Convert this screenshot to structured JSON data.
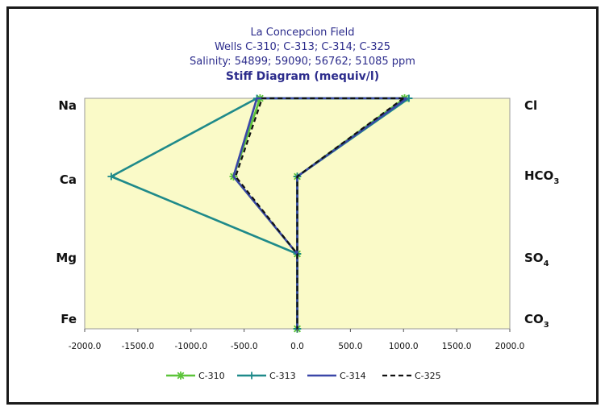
{
  "chart_data": {
    "type": "line",
    "title_lines": [
      "La Concepcion Field",
      "Wells C-310; C-313; C-314; C-325",
      "Salinity: 54899; 59090; 56762; 51085 ppm"
    ],
    "title_bold": "Stiff Diagram (mequiv/l)",
    "xlim": [
      -2000,
      2000
    ],
    "x_ticks": [
      "-2000.0",
      "-1500.0",
      "-1000.0",
      "-500.0",
      "0.0",
      "500.0",
      "1000.0",
      "1500.0",
      "2000.0"
    ],
    "left_labels": [
      {
        "base": "Na",
        "sub": ""
      },
      {
        "base": "Ca",
        "sub": ""
      },
      {
        "base": "Mg",
        "sub": ""
      },
      {
        "base": "Fe",
        "sub": ""
      }
    ],
    "right_labels": [
      {
        "base": "Cl",
        "sub": ""
      },
      {
        "base": "HCO",
        "sub": "3"
      },
      {
        "base": "SO",
        "sub": "4"
      },
      {
        "base": "CO",
        "sub": "3"
      }
    ],
    "background_color": "#fafac8",
    "legend_position": "bottom",
    "series": [
      {
        "name": "C-310",
        "color": "#5cc43a",
        "dash": "solid",
        "marker": "star",
        "points": [
          [
            1010,
            0
          ],
          [
            0,
            1
          ],
          [
            0,
            2
          ],
          [
            0,
            3
          ],
          [
            0,
            3
          ],
          [
            0,
            2
          ],
          [
            -600,
            1
          ],
          [
            -350,
            0
          ],
          [
            1010,
            0
          ]
        ]
      },
      {
        "name": "C-313",
        "color": "#1f8a8a",
        "dash": "solid",
        "marker": "plus",
        "points": [
          [
            1050,
            0
          ],
          [
            0,
            1
          ],
          [
            0,
            2
          ],
          [
            0,
            3
          ],
          [
            0,
            3
          ],
          [
            0,
            2
          ],
          [
            -1750,
            1
          ],
          [
            -380,
            0
          ],
          [
            1050,
            0
          ]
        ]
      },
      {
        "name": "C-314",
        "color": "#3b47a8",
        "dash": "solid",
        "marker": "none",
        "points": [
          [
            1030,
            0
          ],
          [
            0,
            1
          ],
          [
            0,
            2
          ],
          [
            0,
            3
          ],
          [
            0,
            3
          ],
          [
            0,
            2
          ],
          [
            -600,
            1
          ],
          [
            -380,
            0
          ],
          [
            1030,
            0
          ]
        ]
      },
      {
        "name": "C-325",
        "color": "#111111",
        "dash": "dash",
        "marker": "none",
        "points": [
          [
            1000,
            0
          ],
          [
            0,
            1
          ],
          [
            0,
            2
          ],
          [
            0,
            3
          ],
          [
            0,
            3
          ],
          [
            0,
            2
          ],
          [
            -580,
            1
          ],
          [
            -330,
            0
          ],
          [
            1000,
            0
          ]
        ]
      }
    ]
  }
}
